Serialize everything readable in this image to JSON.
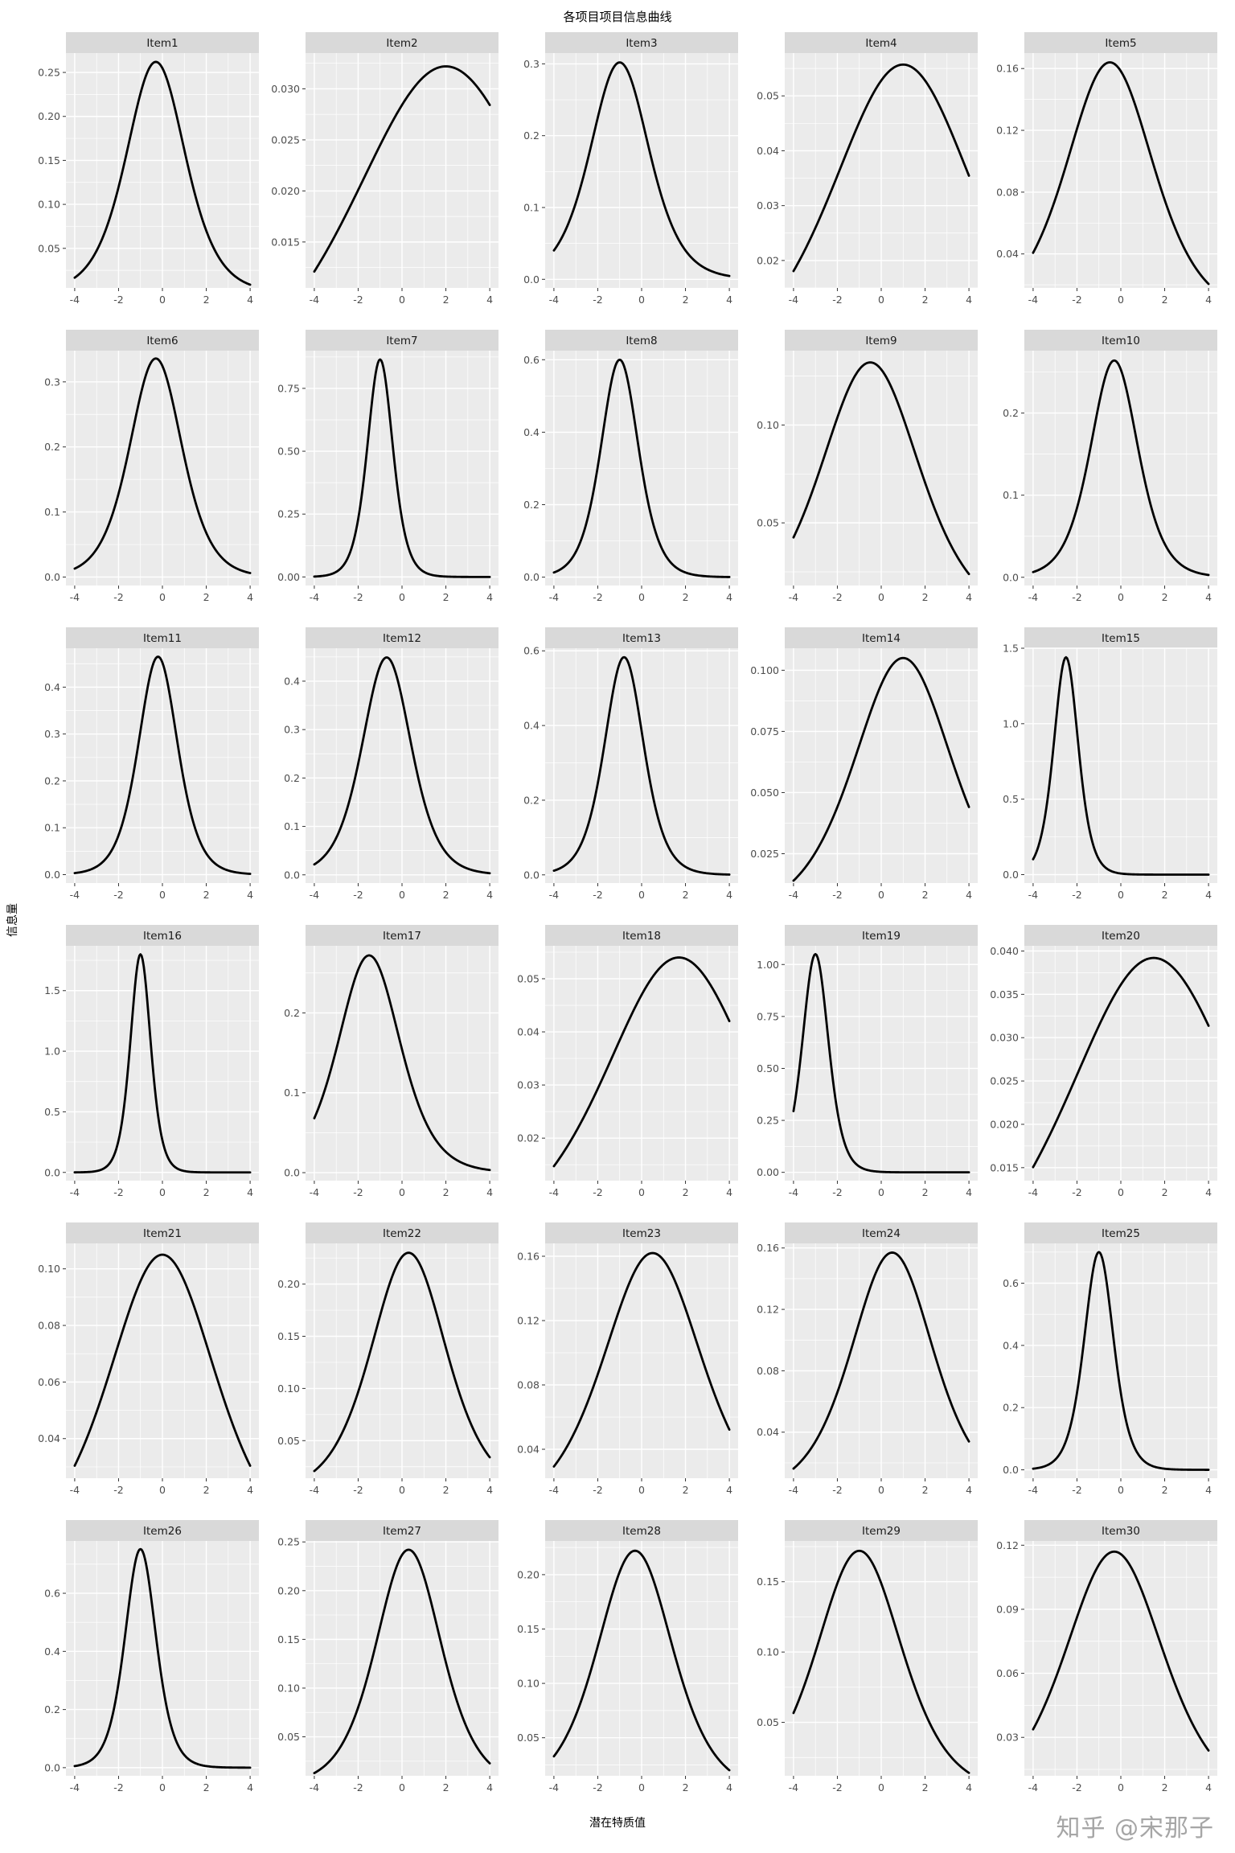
{
  "title": "各项目项目信息曲线",
  "axis": {
    "x_label": "潜在特质值",
    "y_label": "信息量"
  },
  "watermark": "知乎 @宋那子",
  "colors": {
    "strip_bg": "#d9d9d9",
    "panel_bg": "#ebebeb",
    "grid": "#ffffff",
    "curve": "#000000",
    "tick_text": "#4d4d4d",
    "strip_text": "#1a1a1a"
  },
  "chart_data": {
    "type": "line",
    "grid": [
      6,
      5
    ],
    "x_range": [
      -4,
      4
    ],
    "x_ticks": [
      -4,
      -2,
      0,
      2,
      4
    ],
    "x_minor_ticks": [
      -3,
      -1,
      1,
      3
    ],
    "curve_model": "y = peak_y * sech((x - peak_x) / width)^2",
    "items": [
      {
        "label": "Item1",
        "peak_x": -0.3,
        "peak_y": 0.262,
        "width": 1.8,
        "ylim": [
          0.005,
          0.272
        ],
        "y_ticks": [
          0.05,
          0.1,
          0.15,
          0.2,
          0.25
        ],
        "y_tick_labels": [
          "0.05",
          "0.10",
          "0.15",
          "0.20",
          "0.25"
        ]
      },
      {
        "label": "Item2",
        "peak_x": 2.0,
        "peak_y": 0.0322,
        "width": 5.6,
        "ylim": [
          0.0105,
          0.0335
        ],
        "y_ticks": [
          0.015,
          0.02,
          0.025,
          0.03
        ],
        "y_tick_labels": [
          "0.015",
          "0.020",
          "0.025",
          "0.030"
        ]
      },
      {
        "label": "Item3",
        "peak_x": -1.0,
        "peak_y": 0.302,
        "width": 1.8,
        "ylim": [
          -0.012,
          0.315
        ],
        "y_ticks": [
          0,
          0.1,
          0.2,
          0.3
        ],
        "y_tick_labels": [
          "0.0",
          "0.1",
          "0.2",
          "0.3"
        ]
      },
      {
        "label": "Item4",
        "peak_x": 1.0,
        "peak_y": 0.0557,
        "width": 4.3,
        "ylim": [
          0.015,
          0.0578
        ],
        "y_ticks": [
          0.02,
          0.03,
          0.04,
          0.05
        ],
        "y_tick_labels": [
          "0.02",
          "0.03",
          "0.04",
          "0.05"
        ]
      },
      {
        "label": "Item5",
        "peak_x": -0.5,
        "peak_y": 0.164,
        "width": 2.65,
        "ylim": [
          0.018,
          0.17
        ],
        "y_ticks": [
          0.04,
          0.08,
          0.12,
          0.16
        ],
        "y_tick_labels": [
          "0.04",
          "0.08",
          "0.12",
          "0.16"
        ]
      },
      {
        "label": "Item6",
        "peak_x": -0.3,
        "peak_y": 0.336,
        "width": 1.6,
        "ylim": [
          -0.013,
          0.348
        ],
        "y_ticks": [
          0,
          0.1,
          0.2,
          0.3
        ],
        "y_tick_labels": [
          "0.0",
          "0.1",
          "0.2",
          "0.3"
        ]
      },
      {
        "label": "Item7",
        "peak_x": -1.0,
        "peak_y": 0.865,
        "width": 0.78,
        "ylim": [
          -0.034,
          0.9
        ],
        "y_ticks": [
          0,
          0.25,
          0.5,
          0.75
        ],
        "y_tick_labels": [
          "0.00",
          "0.25",
          "0.50",
          "0.75"
        ]
      },
      {
        "label": "Item8",
        "peak_x": -1.0,
        "peak_y": 0.6,
        "width": 1.15,
        "ylim": [
          -0.023,
          0.625
        ],
        "y_ticks": [
          0,
          0.2,
          0.4,
          0.6
        ],
        "y_tick_labels": [
          "0.0",
          "0.2",
          "0.4",
          "0.6"
        ]
      },
      {
        "label": "Item9",
        "peak_x": -0.5,
        "peak_y": 0.132,
        "width": 3.0,
        "ylim": [
          0.018,
          0.138
        ],
        "y_ticks": [
          0.05,
          0.1
        ],
        "y_tick_labels": [
          "0.05",
          "0.10"
        ]
      },
      {
        "label": "Item10",
        "peak_x": -0.3,
        "peak_y": 0.264,
        "width": 1.45,
        "ylim": [
          -0.01,
          0.276
        ],
        "y_ticks": [
          0,
          0.1,
          0.2
        ],
        "y_tick_labels": [
          "0.0",
          "0.1",
          "0.2"
        ]
      },
      {
        "label": "Item11",
        "peak_x": -0.2,
        "peak_y": 0.465,
        "width": 1.2,
        "ylim": [
          -0.018,
          0.483
        ],
        "y_ticks": [
          0,
          0.1,
          0.2,
          0.3,
          0.4
        ],
        "y_tick_labels": [
          "0.0",
          "0.1",
          "0.2",
          "0.3",
          "0.4"
        ]
      },
      {
        "label": "Item12",
        "peak_x": -0.7,
        "peak_y": 0.449,
        "width": 1.5,
        "ylim": [
          -0.017,
          0.468
        ],
        "y_ticks": [
          0,
          0.1,
          0.2,
          0.3,
          0.4
        ],
        "y_tick_labels": [
          "0.0",
          "0.1",
          "0.2",
          "0.3",
          "0.4"
        ]
      },
      {
        "label": "Item13",
        "peak_x": -0.8,
        "peak_y": 0.583,
        "width": 1.2,
        "ylim": [
          -0.022,
          0.607
        ],
        "y_ticks": [
          0,
          0.2,
          0.4,
          0.6
        ],
        "y_tick_labels": [
          "0.0",
          "0.2",
          "0.4",
          "0.6"
        ]
      },
      {
        "label": "Item14",
        "peak_x": 1.0,
        "peak_y": 0.105,
        "width": 3.0,
        "ylim": [
          0.013,
          0.109
        ],
        "y_ticks": [
          0.025,
          0.05,
          0.075,
          0.1
        ],
        "y_tick_labels": [
          "0.025",
          "0.050",
          "0.075",
          "0.100"
        ]
      },
      {
        "label": "Item15",
        "peak_x": -2.5,
        "peak_y": 1.44,
        "width": 0.75,
        "ylim": [
          -0.056,
          1.5
        ],
        "y_ticks": [
          0,
          0.5,
          1,
          1.5
        ],
        "y_tick_labels": [
          "0.0",
          "0.5",
          "1.0",
          "1.5"
        ]
      },
      {
        "label": "Item16",
        "peak_x": -1.0,
        "peak_y": 1.8,
        "width": 0.62,
        "ylim": [
          -0.068,
          1.87
        ],
        "y_ticks": [
          0,
          0.5,
          1,
          1.5
        ],
        "y_tick_labels": [
          "0.0",
          "0.5",
          "1.0",
          "1.5"
        ]
      },
      {
        "label": "Item17",
        "peak_x": -1.5,
        "peak_y": 0.272,
        "width": 1.9,
        "ylim": [
          -0.01,
          0.284
        ],
        "y_ticks": [
          0,
          0.1,
          0.2
        ],
        "y_tick_labels": [
          "0.0",
          "0.1",
          "0.2"
        ]
      },
      {
        "label": "Item18",
        "peak_x": 1.7,
        "peak_y": 0.054,
        "width": 4.5,
        "ylim": [
          0.012,
          0.0562
        ],
        "y_ticks": [
          0.02,
          0.03,
          0.04,
          0.05
        ],
        "y_tick_labels": [
          "0.02",
          "0.03",
          "0.04",
          "0.05"
        ]
      },
      {
        "label": "Item19",
        "peak_x": -3.0,
        "peak_y": 1.05,
        "width": 0.8,
        "ylim": [
          -0.04,
          1.09
        ],
        "y_ticks": [
          0,
          0.25,
          0.5,
          0.75,
          1
        ],
        "y_tick_labels": [
          "0.00",
          "0.25",
          "0.50",
          "0.75",
          "1.00"
        ]
      },
      {
        "label": "Item20",
        "peak_x": 1.5,
        "peak_y": 0.0392,
        "width": 5.2,
        "ylim": [
          0.0135,
          0.0406
        ],
        "y_ticks": [
          0.015,
          0.02,
          0.025,
          0.03,
          0.035,
          0.04
        ],
        "y_tick_labels": [
          "0.015",
          "0.020",
          "0.025",
          "0.030",
          "0.035",
          "0.040"
        ]
      },
      {
        "label": "Item21",
        "peak_x": 0.0,
        "peak_y": 0.105,
        "width": 3.25,
        "ylim": [
          0.026,
          0.109
        ],
        "y_ticks": [
          0.04,
          0.06,
          0.08,
          0.1
        ],
        "y_tick_labels": [
          "0.04",
          "0.06",
          "0.08",
          "0.10"
        ]
      },
      {
        "label": "Item22",
        "peak_x": 0.3,
        "peak_y": 0.23,
        "width": 2.3,
        "ylim": [
          0.014,
          0.239
        ],
        "y_ticks": [
          0.05,
          0.1,
          0.15,
          0.2
        ],
        "y_tick_labels": [
          "0.05",
          "0.10",
          "0.15",
          "0.20"
        ]
      },
      {
        "label": "Item23",
        "peak_x": 0.5,
        "peak_y": 0.162,
        "width": 3.0,
        "ylim": [
          0.022,
          0.168
        ],
        "y_ticks": [
          0.04,
          0.08,
          0.12,
          0.16
        ],
        "y_tick_labels": [
          "0.04",
          "0.08",
          "0.12",
          "0.16"
        ]
      },
      {
        "label": "Item24",
        "peak_x": 0.5,
        "peak_y": 0.157,
        "width": 2.5,
        "ylim": [
          0.01,
          0.163
        ],
        "y_ticks": [
          0.04,
          0.08,
          0.12,
          0.16
        ],
        "y_tick_labels": [
          "0.04",
          "0.08",
          "0.12",
          "0.16"
        ]
      },
      {
        "label": "Item25",
        "peak_x": -1.0,
        "peak_y": 0.7,
        "width": 0.9,
        "ylim": [
          -0.027,
          0.728
        ],
        "y_ticks": [
          0,
          0.2,
          0.4,
          0.6
        ],
        "y_tick_labels": [
          "0.0",
          "0.2",
          "0.4",
          "0.6"
        ]
      },
      {
        "label": "Item26",
        "peak_x": -1.0,
        "peak_y": 0.752,
        "width": 0.95,
        "ylim": [
          -0.028,
          0.78
        ],
        "y_ticks": [
          0,
          0.2,
          0.4,
          0.6
        ],
        "y_tick_labels": [
          "0.0",
          "0.2",
          "0.4",
          "0.6"
        ]
      },
      {
        "label": "Item27",
        "peak_x": 0.3,
        "peak_y": 0.242,
        "width": 2.0,
        "ylim": [
          0.01,
          0.251
        ],
        "y_ticks": [
          0.05,
          0.1,
          0.15,
          0.2,
          0.25
        ],
        "y_tick_labels": [
          "0.05",
          "0.10",
          "0.15",
          "0.20",
          "0.25"
        ]
      },
      {
        "label": "Item28",
        "peak_x": -0.3,
        "peak_y": 0.222,
        "width": 2.3,
        "ylim": [
          0.015,
          0.231
        ],
        "y_ticks": [
          0.05,
          0.1,
          0.15,
          0.2
        ],
        "y_tick_labels": [
          "0.05",
          "0.10",
          "0.15",
          "0.20"
        ]
      },
      {
        "label": "Item29",
        "peak_x": -1.0,
        "peak_y": 0.172,
        "width": 2.6,
        "ylim": [
          0.012,
          0.179
        ],
        "y_ticks": [
          0.05,
          0.1,
          0.15
        ],
        "y_tick_labels": [
          "0.05",
          "0.10",
          "0.15"
        ]
      },
      {
        "label": "Item30",
        "peak_x": -0.3,
        "peak_y": 0.117,
        "width": 3.0,
        "ylim": [
          0.012,
          0.122
        ],
        "y_ticks": [
          0.03,
          0.06,
          0.09,
          0.12
        ],
        "y_tick_labels": [
          "0.03",
          "0.06",
          "0.09",
          "0.12"
        ]
      }
    ]
  }
}
